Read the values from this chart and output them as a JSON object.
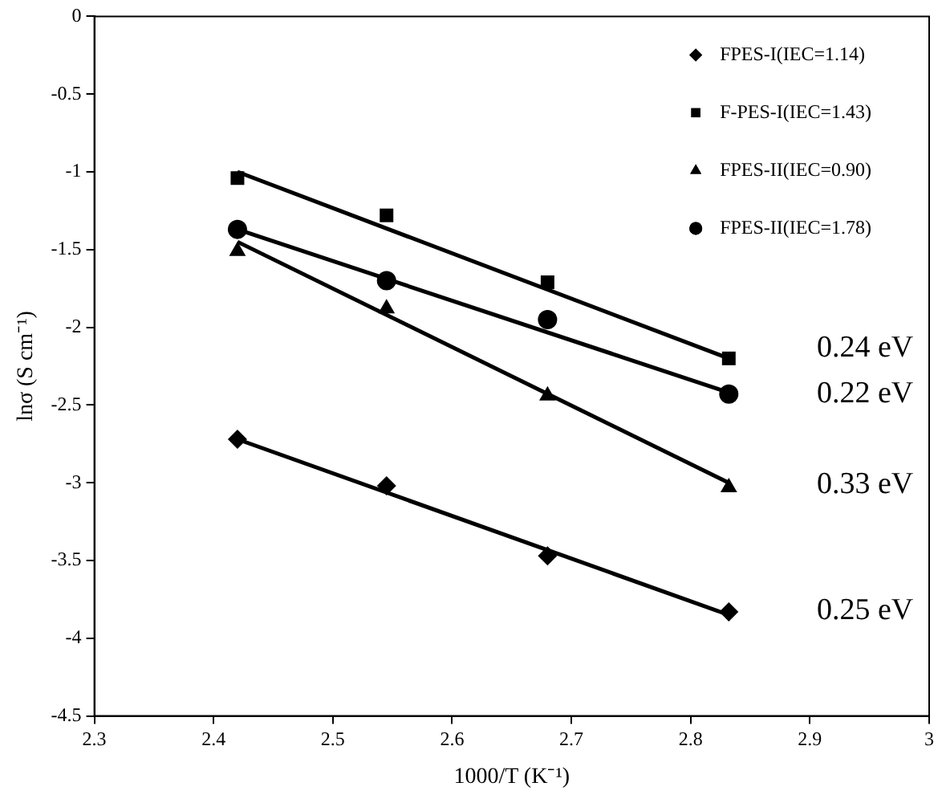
{
  "chart_data": {
    "type": "scatter",
    "xlabel": "1000/T (K⁻¹)",
    "ylabel": "lnσ (S cm⁻¹)",
    "xlim": [
      2.3,
      3
    ],
    "xticks": [
      2.3,
      2.4,
      2.5,
      2.6,
      2.7,
      2.8,
      2.9,
      3
    ],
    "ylim": [
      -4.5,
      0
    ],
    "yticks": [
      -4.5,
      -4,
      -3.5,
      -3,
      -2.5,
      -2,
      -1.5,
      -1,
      -0.5,
      0
    ],
    "grid": false,
    "legend": "top right",
    "series": [
      {
        "name": "FPES-I(IEC=1.14)",
        "type": "scatter",
        "marker": "diamond",
        "color": "#000000",
        "x": [
          2.42,
          2.545,
          2.68,
          2.832
        ],
        "values": [
          -2.72,
          -3.02,
          -3.47,
          -3.83
        ]
      },
      {
        "name": "F-PES-I(IEC=1.43)",
        "type": "scatter",
        "marker": "square",
        "color": "#000000",
        "x": [
          2.42,
          2.545,
          2.68,
          2.832
        ],
        "values": [
          -1.04,
          -1.28,
          -1.71,
          -2.2
        ]
      },
      {
        "name": "FPES-II(IEC=0.90)",
        "type": "scatter",
        "marker": "triangle",
        "color": "#000000",
        "x": [
          2.42,
          2.545,
          2.68,
          2.832
        ],
        "values": [
          -1.51,
          -1.88,
          -2.44,
          -3.03
        ]
      },
      {
        "name": "FPES-II(IEC=1.78)",
        "type": "scatter",
        "marker": "circle",
        "color": "#000000",
        "x": [
          2.42,
          2.545,
          2.68,
          2.832
        ],
        "values": [
          -1.37,
          -1.7,
          -1.95,
          -2.43
        ]
      },
      {
        "type": "line",
        "marker": "none",
        "line_style": "solid",
        "color": "#000000",
        "x": [
          2.42,
          2.832
        ],
        "values": [
          -2.72,
          -3.85
        ]
      },
      {
        "type": "line",
        "marker": "none",
        "line_style": "solid",
        "color": "#000000",
        "x": [
          2.42,
          2.832
        ],
        "values": [
          -1.0,
          -2.2
        ]
      },
      {
        "type": "line",
        "marker": "none",
        "line_style": "solid",
        "color": "#000000",
        "x": [
          2.42,
          2.832
        ],
        "values": [
          -1.45,
          -3.0
        ]
      },
      {
        "type": "line",
        "marker": "none",
        "line_style": "solid",
        "color": "#000000",
        "x": [
          2.42,
          2.832
        ],
        "values": [
          -1.37,
          -2.42
        ]
      }
    ],
    "annotations": [
      "0.24 eV",
      "0.22 eV",
      "0.33 eV",
      "0.25 eV"
    ]
  }
}
